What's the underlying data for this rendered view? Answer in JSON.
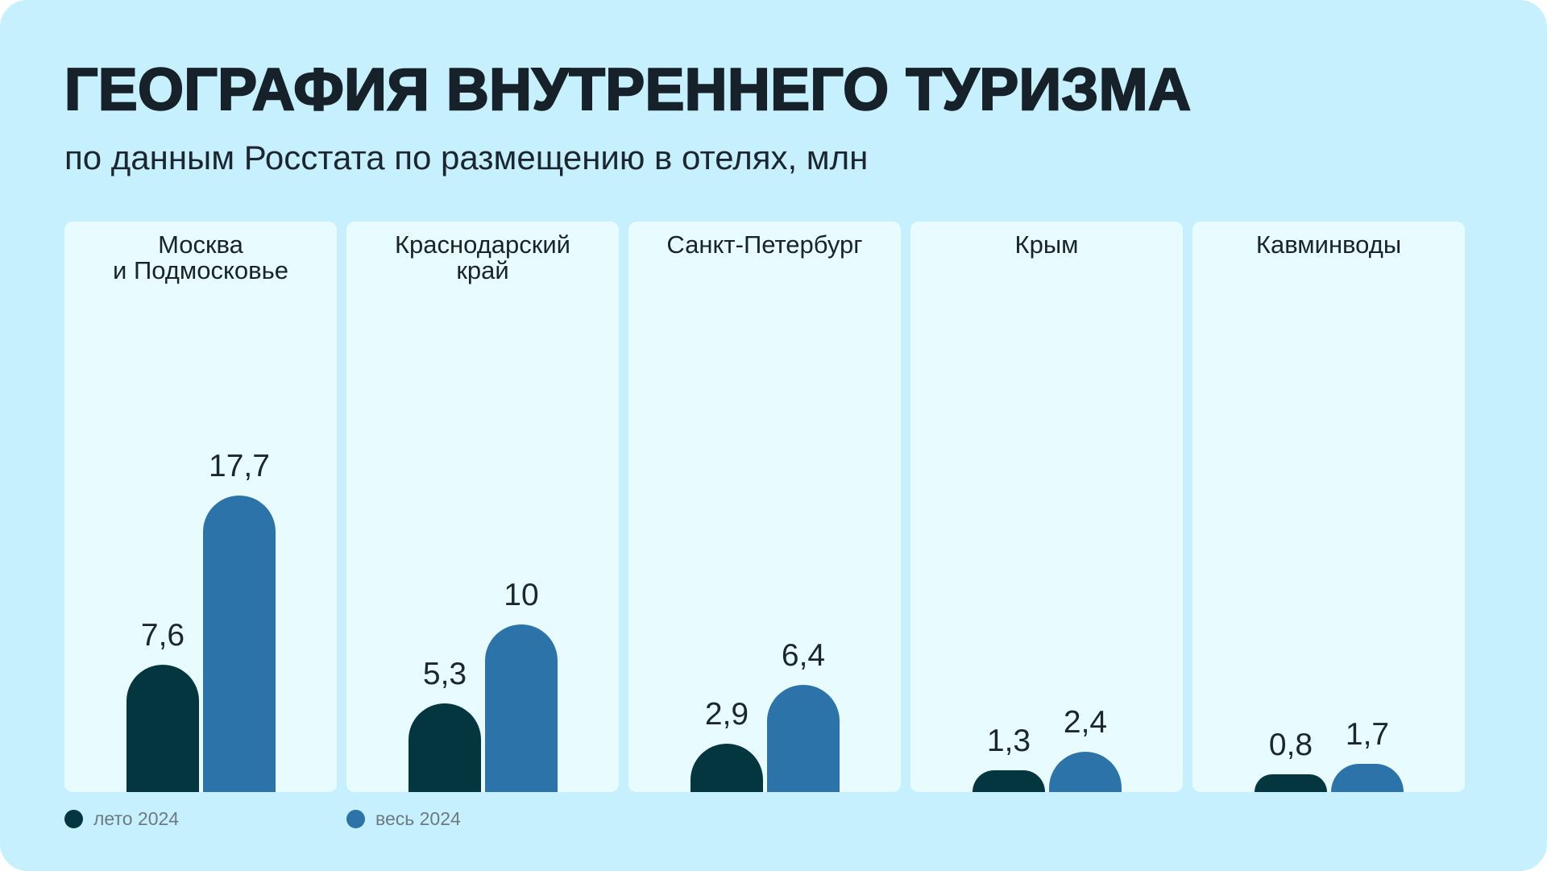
{
  "title": "ГЕОГРАФИЯ ВНУТРЕННЕГО ТУРИЗМА",
  "subtitle": "по данным Росстата по размещению в отелях, млн",
  "legend": [
    {
      "label": "лето 2024",
      "color": "#03363f"
    },
    {
      "label": "весь 2024",
      "color": "#2b73a8"
    }
  ],
  "chart_data": {
    "type": "bar",
    "categories": [
      "Москва\nи Подмосковье",
      "Краснодарский\nкрай",
      "Санкт-Петербург",
      "Крым",
      "Кавминводы"
    ],
    "series": [
      {
        "name": "лето 2024",
        "values": [
          7.6,
          5.3,
          2.9,
          1.3,
          0.8
        ],
        "labels": [
          "7,6",
          "5,3",
          "2,9",
          "1,3",
          "0,8"
        ],
        "color": "#03363f"
      },
      {
        "name": "весь 2024",
        "values": [
          17.7,
          10,
          6.4,
          2.4,
          1.7
        ],
        "labels": [
          "17,7",
          "10",
          "6,4",
          "2,4",
          "1,7"
        ],
        "color": "#2b73a8"
      }
    ],
    "title": "ГЕОГРАФИЯ ВНУТРЕННЕГО ТУРИЗМА",
    "subtitle": "по данным Росстата по размещению в отелях, млн",
    "legend_position": "bottom-left",
    "grid": false
  }
}
